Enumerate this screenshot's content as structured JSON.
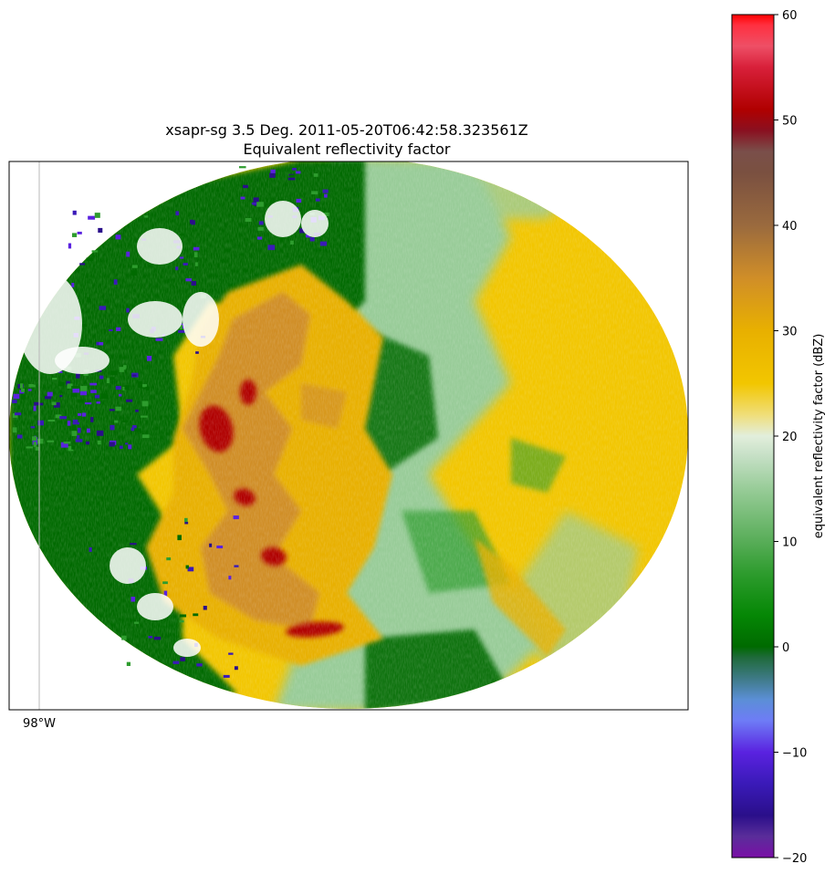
{
  "chart_data": {
    "type": "heatmap",
    "title_line1": "xsapr-sg 3.5 Deg. 2011-05-20T06:42:58.323561Z",
    "title_line2": "Equivalent reflectivity factor",
    "field": "equivalent reflectivity factor",
    "units": "dBZ",
    "x_axis": {
      "gridline_label": "98°W"
    },
    "colorbar": {
      "label": "equivalent reflectivity factor (dBZ)",
      "range": [
        -20,
        60
      ],
      "ticks": [
        "60",
        "50",
        "40",
        "30",
        "20",
        "10",
        "0",
        "−10",
        "−20"
      ],
      "colormap": [
        {
          "v": -20,
          "c": "#7a0fa6"
        },
        {
          "v": -18,
          "c": "#5a2d9a"
        },
        {
          "v": -16,
          "c": "#2a0f8a"
        },
        {
          "v": -13,
          "c": "#3a1ab8"
        },
        {
          "v": -10,
          "c": "#5a22e0"
        },
        {
          "v": -7,
          "c": "#6e7cf6"
        },
        {
          "v": -5,
          "c": "#5b8fd6"
        },
        {
          "v": -3,
          "c": "#3e7a86"
        },
        {
          "v": -1,
          "c": "#1f6a3a"
        },
        {
          "v": 0,
          "c": "#006a00"
        },
        {
          "v": 3,
          "c": "#058705"
        },
        {
          "v": 7,
          "c": "#2e9c2e"
        },
        {
          "v": 10,
          "c": "#58ad58"
        },
        {
          "v": 15,
          "c": "#98cc98"
        },
        {
          "v": 18,
          "c": "#c4dfc4"
        },
        {
          "v": 20,
          "c": "#e2eedc"
        },
        {
          "v": 22,
          "c": "#f0de7a"
        },
        {
          "v": 25,
          "c": "#f2c600"
        },
        {
          "v": 30,
          "c": "#e8b000"
        },
        {
          "v": 35,
          "c": "#d08e28"
        },
        {
          "v": 40,
          "c": "#9a6a3e"
        },
        {
          "v": 45,
          "c": "#7a5040"
        },
        {
          "v": 47,
          "c": "#7a4f4a"
        },
        {
          "v": 49,
          "c": "#8a1020"
        },
        {
          "v": 51,
          "c": "#b00000"
        },
        {
          "v": 55,
          "c": "#d8203a"
        },
        {
          "v": 57,
          "c": "#ee4f66"
        },
        {
          "v": 59,
          "c": "#ff3040"
        },
        {
          "v": 60,
          "c": "#ff0000"
        }
      ]
    },
    "regions": [
      {
        "name": "background_precip_east",
        "dbz": 27
      },
      {
        "name": "green_west_sector",
        "dbz": 2
      },
      {
        "name": "main_convective_line",
        "dbz": 40
      },
      {
        "name": "convective_cores",
        "dbz": 52
      },
      {
        "name": "weak_echo_fringe",
        "dbz": -10
      }
    ]
  }
}
